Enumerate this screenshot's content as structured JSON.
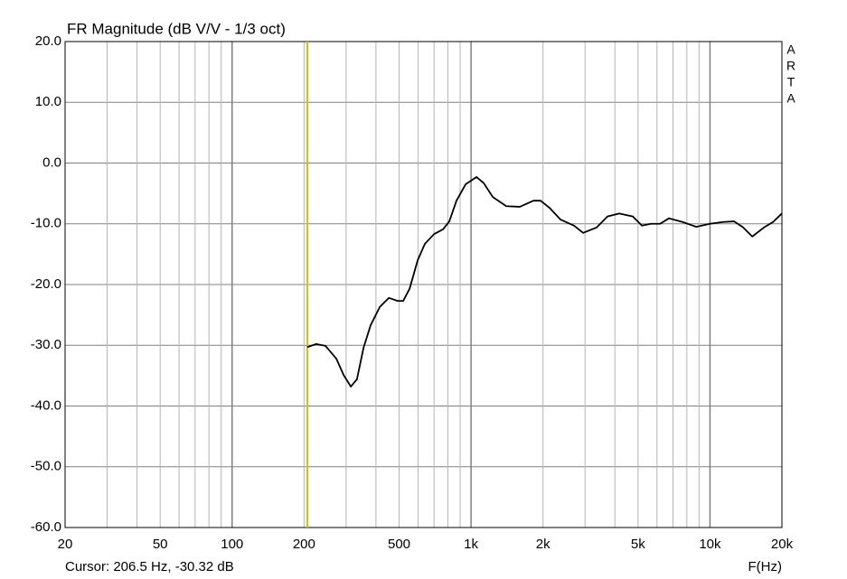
{
  "chart_data": {
    "type": "line",
    "title": "FR Magnitude (dB V/V - 1/3 oct)",
    "x_label": "F(Hz)",
    "watermark": [
      "A",
      "R",
      "T",
      "A"
    ],
    "x": [
      206.5,
      225,
      246,
      273,
      293,
      314,
      333,
      355,
      380,
      415,
      453,
      493,
      520,
      553,
      598,
      641,
      700,
      764,
      811,
      869,
      949,
      1054,
      1130,
      1233,
      1404,
      1600,
      1824,
      1955,
      2134,
      2367,
      2698,
      2945,
      3357,
      3725,
      4170,
      4754,
      5188,
      5663,
      6181,
      6737,
      7681,
      8757,
      9983,
      11360,
      12620,
      13770,
      15030,
      16830,
      18370,
      20000
    ],
    "series": [
      {
        "color": "#000000",
        "values": [
          -30.3,
          -29.8,
          -30.1,
          -32.2,
          -34.9,
          -36.8,
          -35.6,
          -30.4,
          -26.7,
          -23.7,
          -22.2,
          -22.7,
          -22.7,
          -20.7,
          -16.0,
          -13.3,
          -11.7,
          -10.9,
          -9.6,
          -6.2,
          -3.5,
          -2.3,
          -3.3,
          -5.6,
          -7.1,
          -7.2,
          -6.2,
          -6.2,
          -7.4,
          -9.3,
          -10.3,
          -11.5,
          -10.6,
          -8.8,
          -8.3,
          -8.8,
          -10.3,
          -10.0,
          -10.0,
          -9.1,
          -9.7,
          -10.5,
          -10.0,
          -9.7,
          -9.6,
          -10.6,
          -12.1,
          -10.6,
          -9.7,
          -8.3
        ]
      }
    ],
    "x_log": true,
    "xlim": [
      20,
      20000
    ],
    "xticks": [
      20,
      50,
      100,
      200,
      500,
      {
        "value": 1000,
        "label": "1k"
      },
      {
        "value": 2000,
        "label": "2k"
      },
      {
        "value": 5000,
        "label": "5k"
      },
      {
        "value": 10000,
        "label": "10k"
      },
      {
        "value": 20000,
        "label": "20k"
      }
    ],
    "xminorticks": [
      30,
      40,
      60,
      70,
      80,
      90,
      300,
      400,
      600,
      700,
      800,
      900,
      3000,
      4000,
      6000,
      7000,
      8000,
      9000
    ],
    "ylim": [
      -60,
      20
    ],
    "yticks": [
      {
        "value": -60,
        "label": "-60.0"
      },
      {
        "value": -50,
        "label": "-50.0"
      },
      {
        "value": -40,
        "label": "-40.0"
      },
      {
        "value": -30,
        "label": "-30.0"
      },
      {
        "value": -20,
        "label": "-20.0"
      },
      {
        "value": -10,
        "label": "-10.0"
      },
      {
        "value": 0,
        "label": "0.0"
      },
      {
        "value": 10,
        "label": "10.0"
      },
      {
        "value": 20,
        "label": "20.0"
      }
    ],
    "grid": true,
    "cursor": {
      "label": "Cursor: 206.5 Hz, -30.32 dB",
      "x": 206.5,
      "y": -30.32,
      "color": "#d4c400"
    }
  }
}
